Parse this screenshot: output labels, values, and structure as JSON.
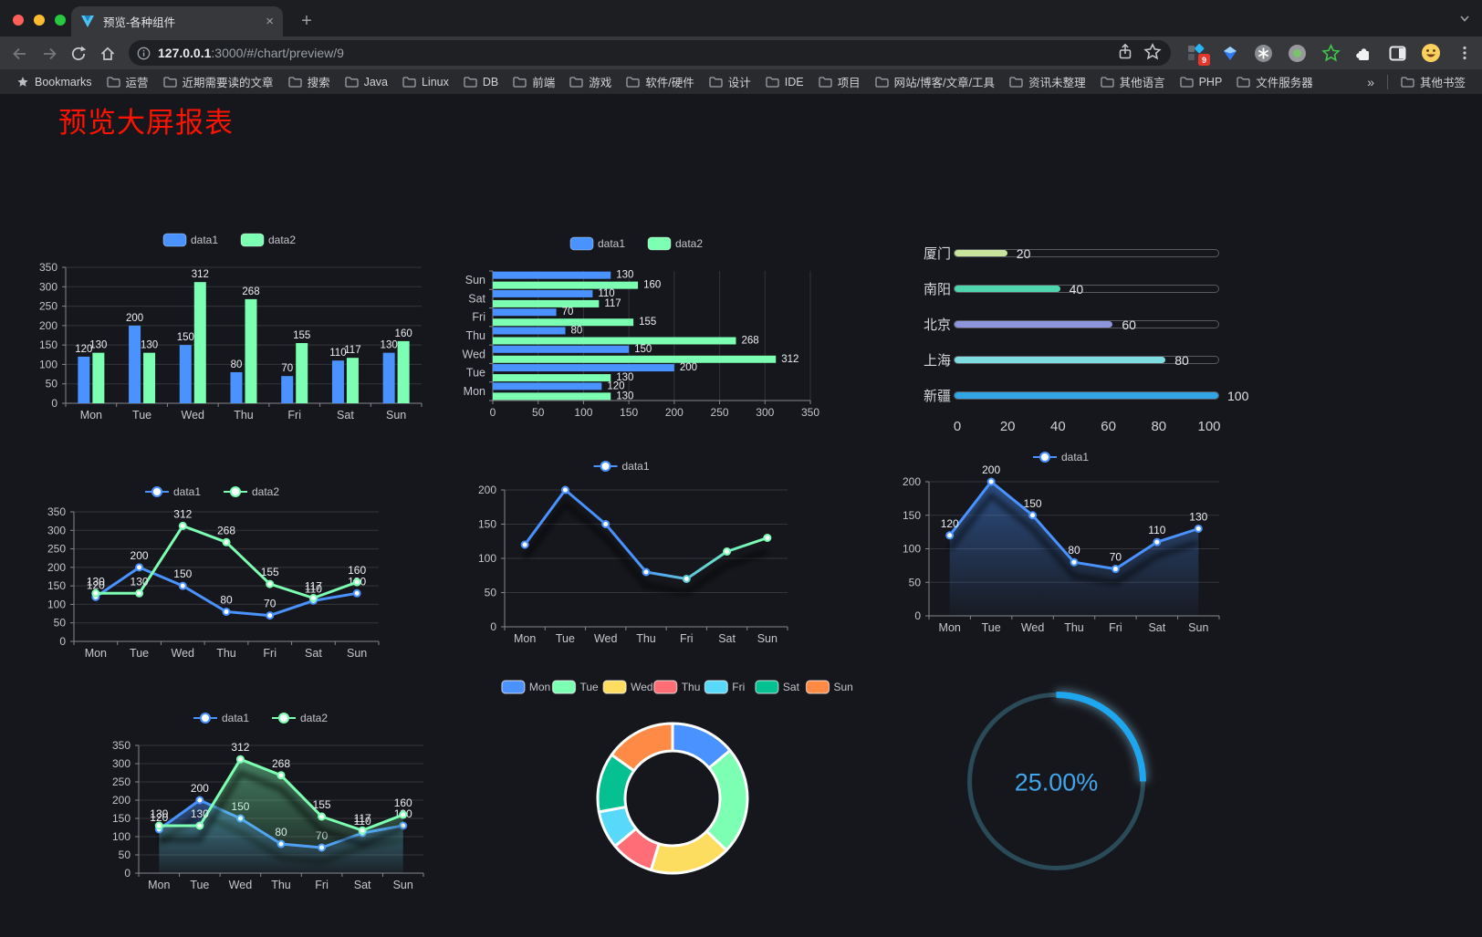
{
  "browser": {
    "window_controls": [
      "close-button",
      "minimize-button",
      "zoom-button"
    ],
    "tab": {
      "title": "预览-各种组件",
      "close_glyph": "×",
      "new_tab_glyph": "+"
    },
    "url": {
      "host": "127.0.0.1",
      "rest": ":3000/#/chart/preview/9"
    },
    "nav_icons": [
      "back-arrow",
      "forward-arrow",
      "reload",
      "home"
    ],
    "url_icons": [
      "page-info",
      "share",
      "bookmark-star"
    ],
    "extension_icons": [
      {
        "name": "grid-diamond",
        "badge": "9"
      },
      {
        "name": "gem"
      },
      {
        "name": "asterisk-circle"
      },
      {
        "name": "green-dot-circle"
      },
      {
        "name": "star-outline"
      },
      {
        "name": "puzzle"
      },
      {
        "name": "split-square"
      },
      {
        "name": "emoji-face"
      },
      {
        "name": "kebab-menu"
      }
    ],
    "bookmarks": [
      "Bookmarks",
      "运营",
      "近期需要读的文章",
      "搜索",
      "Java",
      "Linux",
      "DB",
      "前端",
      "游戏",
      "软件/硬件",
      "设计",
      "IDE",
      "项目",
      "网站/博客/文章/工具",
      "资讯未整理",
      "其他语言",
      "PHP",
      "文件服务器"
    ],
    "bookmarks_overflow": "»",
    "other_bookmarks": "其他书签"
  },
  "page": {
    "title": "预览大屏报表",
    "title_color": "#fe1200",
    "background": "#16171c"
  },
  "chart_data": [
    {
      "id": "bar-grouped",
      "type": "bar",
      "categories": [
        "Mon",
        "Tue",
        "Wed",
        "Thu",
        "Fri",
        "Sat",
        "Sun"
      ],
      "series": [
        {
          "name": "data1",
          "color": "#4992ff",
          "values": [
            120,
            200,
            150,
            80,
            70,
            110,
            130
          ]
        },
        {
          "name": "data2",
          "color": "#7cffb2",
          "values": [
            130,
            130,
            312,
            268,
            155,
            117,
            160
          ]
        }
      ],
      "ylim": [
        0,
        350
      ],
      "ytick_step": 50,
      "grid": true,
      "legend_position": "top",
      "show_labels": true
    },
    {
      "id": "hbar-grouped",
      "type": "hbar",
      "categories": [
        "Mon",
        "Tue",
        "Wed",
        "Thu",
        "Fri",
        "Sat",
        "Sun"
      ],
      "category_axis_order_top_to_bottom": [
        "Sun",
        "Sat",
        "Fri",
        "Thu",
        "Wed",
        "Tue",
        "Mon"
      ],
      "series": [
        {
          "name": "data1",
          "color": "#4992ff",
          "values": [
            120,
            200,
            150,
            80,
            70,
            110,
            130
          ]
        },
        {
          "name": "data2",
          "color": "#7cffb2",
          "values": [
            130,
            130,
            312,
            268,
            155,
            117,
            160
          ]
        }
      ],
      "xlim": [
        0,
        350
      ],
      "xtick_step": 50,
      "grid": true,
      "legend_position": "top",
      "show_labels": true
    },
    {
      "id": "city-progress",
      "type": "progress-bars",
      "max": 100,
      "rows": [
        {
          "label": "厦门",
          "value": 20,
          "color": "#c8e49c"
        },
        {
          "label": "南阳",
          "value": 40,
          "color": "#4fd6ae"
        },
        {
          "label": "北京",
          "value": 60,
          "color": "#8d96dd"
        },
        {
          "label": "上海",
          "value": 80,
          "color": "#7fdde2"
        },
        {
          "label": "新疆",
          "value": 100,
          "color": "#33a4e4"
        }
      ],
      "xticks": [
        0,
        20,
        40,
        60,
        80,
        100
      ]
    },
    {
      "id": "line-2series",
      "type": "line",
      "categories": [
        "Mon",
        "Tue",
        "Wed",
        "Thu",
        "Fri",
        "Sat",
        "Sun"
      ],
      "series": [
        {
          "name": "data1",
          "color": "#4992ff",
          "values": [
            120,
            200,
            150,
            80,
            70,
            110,
            130
          ]
        },
        {
          "name": "data2",
          "color": "#7cffb2",
          "values": [
            130,
            130,
            312,
            268,
            155,
            117,
            160
          ]
        }
      ],
      "ylim": [
        0,
        350
      ],
      "ytick_step": 50,
      "grid": true,
      "legend_position": "top",
      "show_labels": true
    },
    {
      "id": "line-gradient",
      "type": "line",
      "categories": [
        "Mon",
        "Tue",
        "Wed",
        "Thu",
        "Fri",
        "Sat",
        "Sun"
      ],
      "series": [
        {
          "name": "data1",
          "color": "#4992ff",
          "gradient": [
            "#4992ff",
            "#7cffb2"
          ],
          "values": [
            120,
            200,
            150,
            80,
            70,
            110,
            130
          ]
        }
      ],
      "ylim": [
        0,
        200
      ],
      "ytick_step": 50,
      "grid": true,
      "legend_position": "top",
      "show_labels": false,
      "shadow": true
    },
    {
      "id": "area-1series",
      "type": "line",
      "categories": [
        "Mon",
        "Tue",
        "Wed",
        "Thu",
        "Fri",
        "Sat",
        "Sun"
      ],
      "series": [
        {
          "name": "data1",
          "color": "#4992ff",
          "area": true,
          "values": [
            120,
            200,
            150,
            80,
            70,
            110,
            130
          ]
        }
      ],
      "ylim": [
        0,
        200
      ],
      "ytick_step": 50,
      "grid": true,
      "legend_position": "top",
      "show_labels": true,
      "shadow": true
    },
    {
      "id": "area-2series",
      "type": "line",
      "categories": [
        "Mon",
        "Tue",
        "Wed",
        "Thu",
        "Fri",
        "Sat",
        "Sun"
      ],
      "series": [
        {
          "name": "data1",
          "color": "#4992ff",
          "area": true,
          "values": [
            120,
            200,
            150,
            80,
            70,
            110,
            130
          ]
        },
        {
          "name": "data2",
          "color": "#7cffb2",
          "area": true,
          "values": [
            130,
            130,
            312,
            268,
            155,
            117,
            160
          ]
        }
      ],
      "ylim": [
        0,
        350
      ],
      "ytick_step": 50,
      "grid": true,
      "legend_position": "top",
      "show_labels": true,
      "shadow": true
    },
    {
      "id": "donut-days",
      "type": "donut",
      "labels": [
        "Mon",
        "Tue",
        "Wed",
        "Thu",
        "Fri",
        "Sat",
        "Sun"
      ],
      "values": [
        120,
        200,
        150,
        80,
        70,
        110,
        130
      ],
      "colors": [
        "#4992ff",
        "#7cffb2",
        "#fddd60",
        "#ff6e76",
        "#58d9f9",
        "#05c091",
        "#ff8a45"
      ],
      "border_color": "#ffffff",
      "legend_position": "top"
    },
    {
      "id": "gauge-percent",
      "type": "gauge",
      "value": 25,
      "display": "25.00%",
      "color": "#1ea7ee",
      "track_color": "#2b4a57",
      "text_color": "#41a6ec"
    }
  ]
}
